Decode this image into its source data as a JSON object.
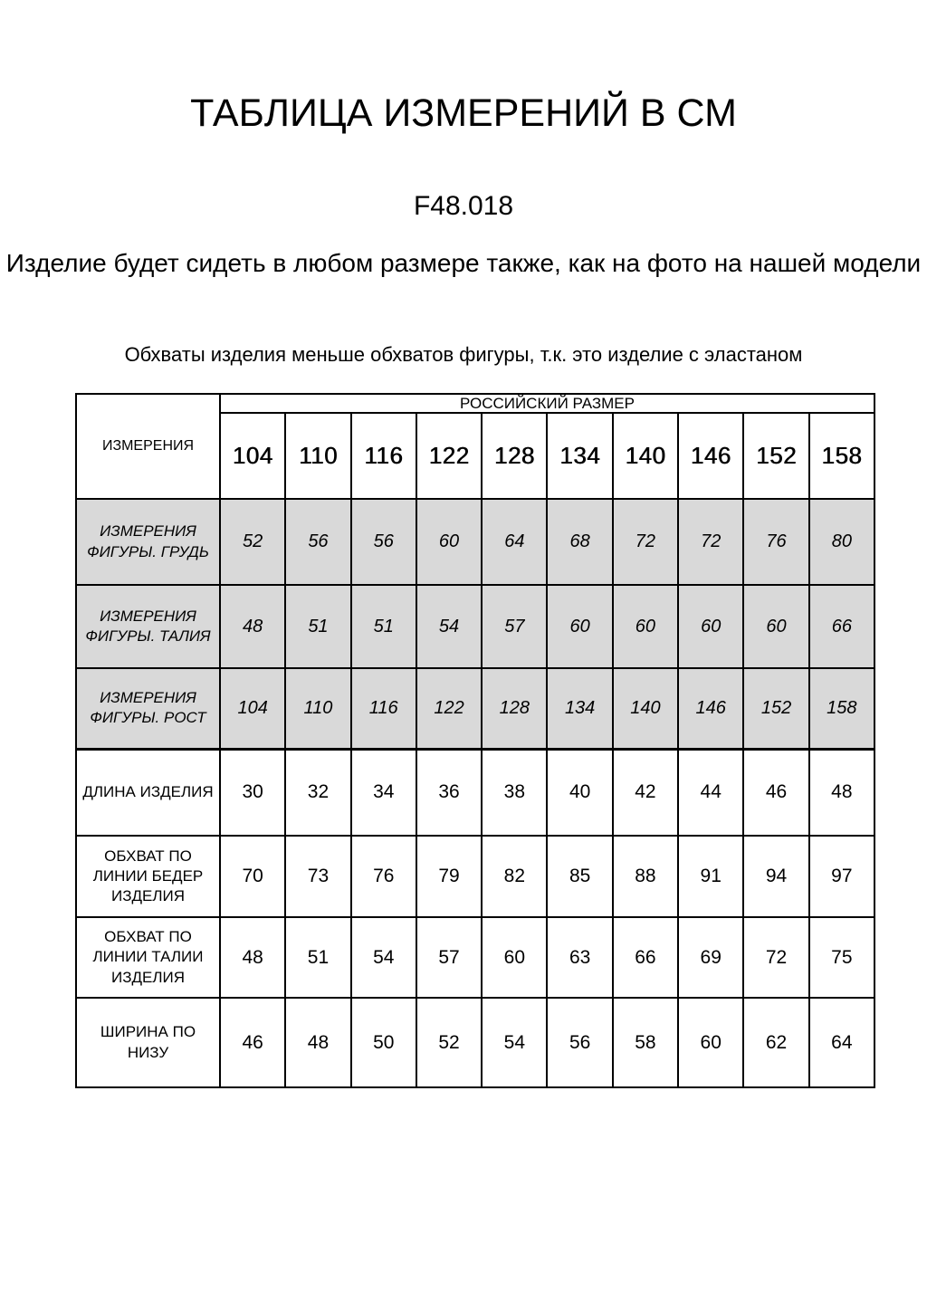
{
  "page": {
    "title": "ТАБЛИЦА ИЗМЕРЕНИЙ В СМ",
    "article": "F48.018",
    "subtitle": "Изделие будет сидеть в любом размере также, как на фото на нашей модели",
    "note": "Обхваты изделия меньше обхватов фигуры, т.к. это изделие с эластаном"
  },
  "table": {
    "corner_label": "ИЗМЕРЕНИЯ",
    "size_header": "РОССИЙСКИЙ РАЗМЕР",
    "sizes": [
      "104",
      "110",
      "116",
      "122",
      "128",
      "134",
      "140",
      "146",
      "152",
      "158"
    ],
    "rows": [
      {
        "label": "ИЗМЕРЕНИЯ\nФИГУРЫ. ГРУДЬ",
        "style": "figure",
        "values": [
          "52",
          "56",
          "56",
          "60",
          "64",
          "68",
          "72",
          "72",
          "76",
          "80"
        ]
      },
      {
        "label": "ИЗМЕРЕНИЯ\nФИГУРЫ. ТАЛИЯ",
        "style": "figure",
        "values": [
          "48",
          "51",
          "51",
          "54",
          "57",
          "60",
          "60",
          "60",
          "60",
          "66"
        ]
      },
      {
        "label": "ИЗМЕРЕНИЯ\nФИГУРЫ. РОСТ",
        "style": "figure",
        "values": [
          "104",
          "110",
          "116",
          "122",
          "128",
          "134",
          "140",
          "146",
          "152",
          "158"
        ]
      },
      {
        "label": "ДЛИНА ИЗДЕЛИЯ",
        "style": "product",
        "values": [
          "30",
          "32",
          "34",
          "36",
          "38",
          "40",
          "42",
          "44",
          "46",
          "48"
        ]
      },
      {
        "label": "ОБХВАТ ПО\nЛИНИИ БЕДЕР\nИЗДЕЛИЯ",
        "style": "product",
        "values": [
          "70",
          "73",
          "76",
          "79",
          "82",
          "85",
          "88",
          "91",
          "94",
          "97"
        ]
      },
      {
        "label": "ОБХВАТ ПО\nЛИНИИ ТАЛИИ\nИЗДЕЛИЯ",
        "style": "product",
        "values": [
          "48",
          "51",
          "54",
          "57",
          "60",
          "63",
          "66",
          "69",
          "72",
          "75"
        ]
      },
      {
        "label": "ШИРИНА ПО\nНИЗУ",
        "style": "product",
        "values": [
          "46",
          "48",
          "50",
          "52",
          "54",
          "56",
          "58",
          "60",
          "62",
          "64"
        ]
      }
    ],
    "colors": {
      "figure_row_bg": "#d9d9d9",
      "border": "#000000"
    }
  }
}
